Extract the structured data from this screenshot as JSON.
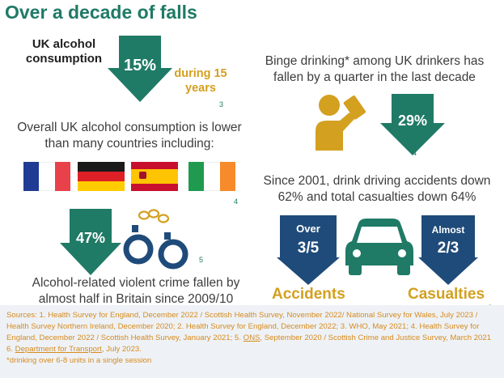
{
  "title": "Over a decade of falls",
  "consumption": {
    "label": "UK alcohol consumption",
    "percent": "15%",
    "period": "during 15 years",
    "ref": "3",
    "colors": {
      "arrow": "#1f7a66",
      "gold": "#d3a020"
    }
  },
  "binge": {
    "text": "Binge drinking* among UK drinkers has fallen by a quarter in the last decade",
    "percent": "29%",
    "ref": "4",
    "icon": "drinking-person-icon"
  },
  "comparison": {
    "text": "Overall UK alcohol consumption is lower than many countries including:",
    "ref": "4",
    "flags": [
      "france-flag-icon",
      "germany-flag-icon",
      "spain-flag-icon",
      "ireland-flag-icon"
    ]
  },
  "drink_driving": {
    "text": "Since 2001, drink driving accidents down 62% and total casualties down 64%",
    "accidents_top": "Over",
    "accidents_value": "3/5",
    "accidents_label": "Accidents",
    "casualties_top": "Almost",
    "casualties_value": "2/3",
    "casualties_label": "Casualties",
    "ref": "6",
    "icon": "car-icon"
  },
  "violent_crime": {
    "percent": "47%",
    "text": "Alcohol-related violent crime fallen by almost half in Britain since 2009/10",
    "ref": "5",
    "icon": "handcuffs-icon"
  },
  "sources": {
    "part1": "Sources: 1. Health Survey for England, December 2022 / Scottish Health Survey, November 2022/ National Survey for Wales, July 2023 / Health Survey Northern Ireland, December 2020; 2. Health Survey for England, December 2022; 3. WHO, May 2021; 4. Health Survey for England, December 2022 / Scottish Health Survey, January 2021; 5. ",
    "link1": "ONS",
    "part2": ", September 2020 / Scottish Crime and Justice Survey, March 2021 6. ",
    "link2": "Department for Transport",
    "part3": ", July 2023.",
    "note": "*drinking over 6-8 units in a single session"
  }
}
